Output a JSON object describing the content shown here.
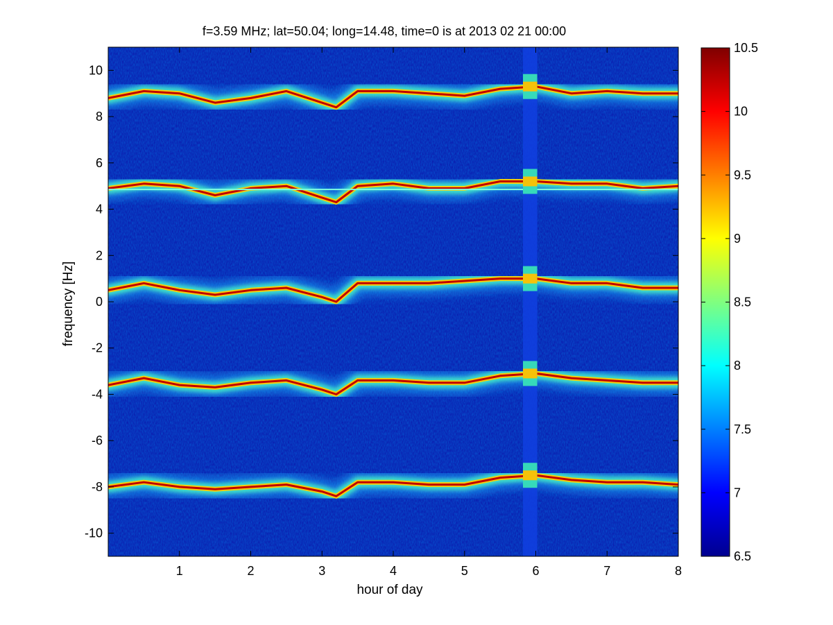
{
  "chart_data": {
    "type": "heatmap",
    "title": "f=3.59 MHz;  lat=50.04; long=14.48, time=0 is at 2013 02 21 00:00",
    "xlabel": "hour of day",
    "ylabel": "frequency [Hz]",
    "xlim": [
      0,
      8
    ],
    "ylim": [
      -11,
      11
    ],
    "xticks": [
      "1",
      "2",
      "3",
      "4",
      "5",
      "6",
      "7",
      "8"
    ],
    "yticks": [
      "-10",
      "-8",
      "-6",
      "-4",
      "-2",
      "0",
      "2",
      "4",
      "6",
      "8",
      "10"
    ],
    "colorbar": {
      "colormap": "jet",
      "lim": [
        6.5,
        10.5
      ],
      "ticks": [
        "6.5",
        "7",
        "7.5",
        "8",
        "8.5",
        "9",
        "9.5",
        "10",
        "10.5"
      ]
    },
    "grid": false,
    "traces": [
      {
        "label": "trace near +9 Hz",
        "x": [
          0,
          0.5,
          1.0,
          1.5,
          2.0,
          2.5,
          3.0,
          3.2,
          3.5,
          4.0,
          4.5,
          5.0,
          5.5,
          6.0,
          6.5,
          7.0,
          7.5,
          8.0
        ],
        "y": [
          8.8,
          9.1,
          9.0,
          8.6,
          8.8,
          9.1,
          8.6,
          8.4,
          9.1,
          9.1,
          9.0,
          8.9,
          9.2,
          9.3,
          9.0,
          9.1,
          9.0,
          9.0
        ]
      },
      {
        "label": "trace near +5 Hz",
        "x": [
          0,
          0.5,
          1.0,
          1.5,
          2.0,
          2.5,
          3.0,
          3.2,
          3.5,
          4.0,
          4.5,
          5.0,
          5.5,
          6.0,
          6.5,
          7.0,
          7.5,
          8.0
        ],
        "y": [
          4.9,
          5.1,
          5.0,
          4.6,
          4.9,
          5.0,
          4.5,
          4.3,
          5.0,
          5.1,
          4.9,
          4.9,
          5.2,
          5.2,
          5.1,
          5.1,
          4.9,
          5.0
        ]
      },
      {
        "label": "trace near +0.6 Hz",
        "x": [
          0,
          0.5,
          1.0,
          1.5,
          2.0,
          2.5,
          3.0,
          3.2,
          3.5,
          4.0,
          4.5,
          5.0,
          5.5,
          6.0,
          6.5,
          7.0,
          7.5,
          8.0
        ],
        "y": [
          0.5,
          0.8,
          0.5,
          0.3,
          0.5,
          0.6,
          0.2,
          0.0,
          0.8,
          0.8,
          0.8,
          0.9,
          1.0,
          1.0,
          0.8,
          0.8,
          0.6,
          0.6
        ]
      },
      {
        "label": "trace near -3.5 Hz",
        "x": [
          0,
          0.5,
          1.0,
          1.5,
          2.0,
          2.5,
          3.0,
          3.2,
          3.5,
          4.0,
          4.5,
          5.0,
          5.5,
          6.0,
          6.5,
          7.0,
          7.5,
          8.0
        ],
        "y": [
          -3.6,
          -3.3,
          -3.6,
          -3.7,
          -3.5,
          -3.4,
          -3.8,
          -4.0,
          -3.4,
          -3.4,
          -3.5,
          -3.5,
          -3.2,
          -3.1,
          -3.3,
          -3.4,
          -3.5,
          -3.5
        ]
      },
      {
        "label": "trace near -7.9 Hz",
        "x": [
          0,
          0.5,
          1.0,
          1.5,
          2.0,
          2.5,
          3.0,
          3.2,
          3.5,
          4.0,
          4.5,
          5.0,
          5.5,
          6.0,
          6.5,
          7.0,
          7.5,
          8.0
        ],
        "y": [
          -8.0,
          -7.8,
          -8.0,
          -8.1,
          -8.0,
          -7.9,
          -8.2,
          -8.4,
          -7.8,
          -7.8,
          -7.9,
          -7.9,
          -7.6,
          -7.5,
          -7.7,
          -7.8,
          -7.8,
          -7.9
        ]
      }
    ],
    "stationary_line_y": 4.85,
    "data_gap_x": [
      5.82,
      6.02
    ]
  }
}
